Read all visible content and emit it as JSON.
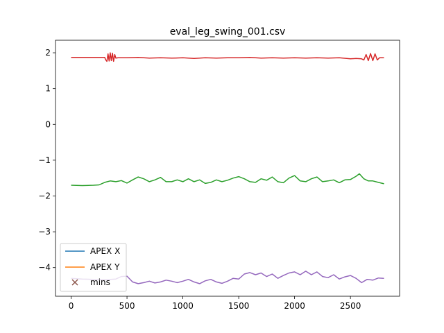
{
  "chart_data": {
    "type": "line",
    "title": "eval_leg_swing_001.csv",
    "xlabel": "",
    "ylabel": "",
    "xlim": [
      -140,
      2940
    ],
    "ylim": [
      -4.8,
      2.35
    ],
    "xticks": [
      0,
      500,
      1000,
      1500,
      2000,
      2500
    ],
    "yticks": [
      2,
      1,
      0,
      -1,
      -2,
      -3,
      -4
    ],
    "ytick_labels": [
      "2",
      "1",
      "0",
      "−1",
      "−2",
      "−3",
      "−4"
    ],
    "grid": false,
    "legend_position": "lower-left",
    "legend": [
      {
        "label": "APEX X",
        "kind": "line",
        "color": "#1f77b4"
      },
      {
        "label": "APEX Y",
        "kind": "line",
        "color": "#ff7f0e"
      },
      {
        "label": "mins",
        "kind": "marker-x",
        "color": "#8c564b"
      }
    ],
    "series": [
      {
        "color": "#d62728",
        "x": [
          0,
          150,
          300,
          310,
          320,
          330,
          340,
          350,
          360,
          370,
          380,
          390,
          400,
          420,
          450,
          500,
          600,
          700,
          800,
          900,
          1000,
          1100,
          1200,
          1300,
          1400,
          1500,
          1600,
          1700,
          1800,
          1900,
          2000,
          2100,
          2200,
          2300,
          2400,
          2500,
          2550,
          2600,
          2620,
          2640,
          2660,
          2680,
          2700,
          2720,
          2740,
          2760,
          2800
        ],
        "y": [
          1.87,
          1.87,
          1.87,
          1.8,
          1.76,
          1.97,
          1.77,
          2.0,
          1.78,
          1.99,
          1.76,
          1.95,
          1.85,
          1.86,
          1.86,
          1.86,
          1.87,
          1.85,
          1.86,
          1.85,
          1.86,
          1.84,
          1.86,
          1.85,
          1.86,
          1.86,
          1.87,
          1.85,
          1.86,
          1.85,
          1.86,
          1.85,
          1.86,
          1.85,
          1.86,
          1.83,
          1.84,
          1.83,
          1.8,
          1.95,
          1.78,
          1.98,
          1.78,
          1.97,
          1.8,
          1.86,
          1.86
        ]
      },
      {
        "color": "#2ca02c",
        "x": [
          0,
          100,
          200,
          250,
          300,
          350,
          400,
          450,
          500,
          550,
          600,
          650,
          700,
          750,
          800,
          850,
          900,
          950,
          1000,
          1050,
          1100,
          1150,
          1200,
          1250,
          1300,
          1350,
          1400,
          1450,
          1500,
          1550,
          1600,
          1650,
          1700,
          1750,
          1800,
          1850,
          1900,
          1950,
          2000,
          2050,
          2100,
          2150,
          2200,
          2250,
          2300,
          2350,
          2400,
          2450,
          2500,
          2550,
          2580,
          2620,
          2660,
          2700,
          2750,
          2800
        ],
        "y": [
          -1.7,
          -1.71,
          -1.7,
          -1.69,
          -1.62,
          -1.58,
          -1.6,
          -1.57,
          -1.64,
          -1.55,
          -1.47,
          -1.52,
          -1.6,
          -1.55,
          -1.48,
          -1.6,
          -1.6,
          -1.55,
          -1.6,
          -1.52,
          -1.6,
          -1.55,
          -1.65,
          -1.62,
          -1.55,
          -1.6,
          -1.56,
          -1.5,
          -1.46,
          -1.52,
          -1.6,
          -1.62,
          -1.52,
          -1.56,
          -1.47,
          -1.6,
          -1.63,
          -1.5,
          -1.43,
          -1.58,
          -1.6,
          -1.52,
          -1.47,
          -1.6,
          -1.58,
          -1.55,
          -1.63,
          -1.55,
          -1.54,
          -1.45,
          -1.38,
          -1.52,
          -1.58,
          -1.58,
          -1.62,
          -1.66
        ]
      },
      {
        "color": "#9467bd",
        "x": [
          0,
          100,
          200,
          300,
          400,
          450,
          500,
          550,
          600,
          650,
          700,
          750,
          800,
          850,
          900,
          950,
          1000,
          1050,
          1100,
          1150,
          1200,
          1250,
          1300,
          1350,
          1400,
          1450,
          1500,
          1550,
          1600,
          1650,
          1700,
          1750,
          1800,
          1850,
          1900,
          1950,
          2000,
          2050,
          2100,
          2150,
          2200,
          2250,
          2300,
          2350,
          2400,
          2450,
          2500,
          2550,
          2600,
          2650,
          2700,
          2750,
          2800
        ],
        "y": [
          -4.3,
          -4.32,
          -4.33,
          -4.34,
          -4.32,
          -4.25,
          -4.24,
          -4.4,
          -4.45,
          -4.42,
          -4.38,
          -4.43,
          -4.4,
          -4.35,
          -4.38,
          -4.42,
          -4.38,
          -4.33,
          -4.4,
          -4.45,
          -4.37,
          -4.33,
          -4.4,
          -4.44,
          -4.38,
          -4.3,
          -4.32,
          -4.18,
          -4.14,
          -4.2,
          -4.15,
          -4.25,
          -4.18,
          -4.3,
          -4.22,
          -4.15,
          -4.12,
          -4.2,
          -4.1,
          -4.2,
          -4.12,
          -4.25,
          -4.28,
          -4.2,
          -4.32,
          -4.26,
          -4.22,
          -4.3,
          -4.42,
          -4.33,
          -4.35,
          -4.29,
          -4.3
        ]
      }
    ]
  }
}
